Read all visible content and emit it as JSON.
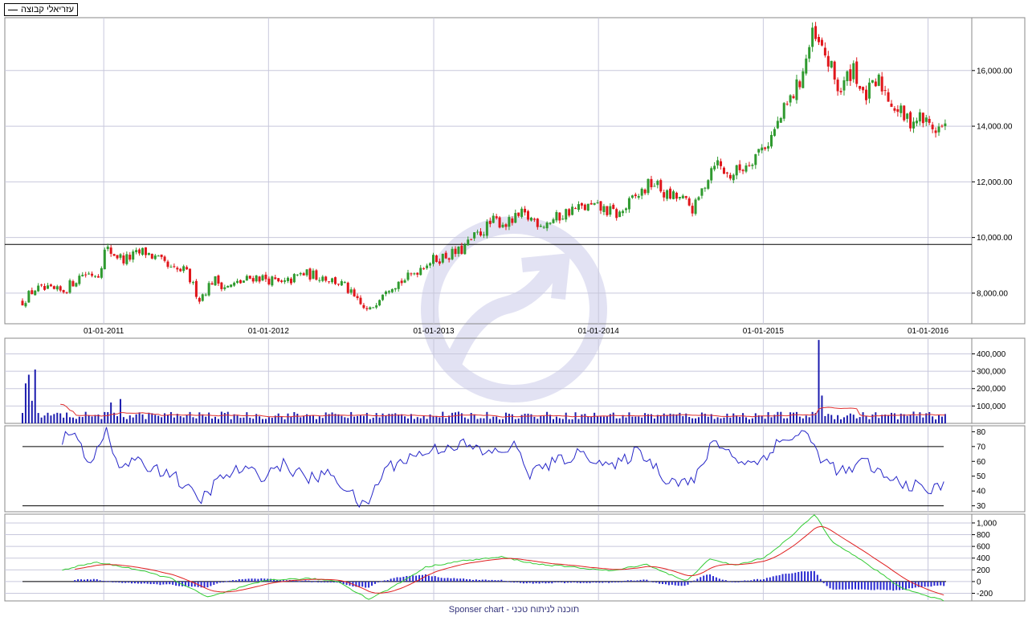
{
  "legend": {
    "label": "עזריאלי קבוצה"
  },
  "footer": {
    "text": "Sponser chart - תוכנה לניתוח טכני"
  },
  "colors": {
    "up": "#2f9a2f",
    "down": "#e0161b",
    "volume": "#1c1cae",
    "volume_ma": "#e03030",
    "rsi": "#2626c8",
    "macd": "#33cc33",
    "signal": "#e02020",
    "hist": "#2a2ad0"
  },
  "chart_data": [
    {
      "type": "candlestick",
      "title": "",
      "x_ticks": [
        "01-01-2011",
        "01-01-2012",
        "01-01-2013",
        "01-01-2014",
        "01-01-2015",
        "01-01-2016"
      ],
      "y_ticks": [
        "8,000.00",
        "10,000.00",
        "12,000.00",
        "14,000.00",
        "16,000.00"
      ],
      "y_tick_values": [
        8000,
        10000,
        12000,
        14000,
        16000
      ],
      "ylim": [
        6900,
        17900
      ],
      "reference_line": 9750,
      "date_range": [
        "2010-07-05",
        "2016-02-10"
      ],
      "close_anchors": [
        [
          "2010-07-05",
          7700
        ],
        [
          "2010-08-01",
          8150
        ],
        [
          "2010-10-01",
          8050
        ],
        [
          "2010-11-15",
          8700
        ],
        [
          "2010-12-20",
          8700
        ],
        [
          "2011-01-05",
          9600
        ],
        [
          "2011-02-15",
          9200
        ],
        [
          "2011-04-01",
          9500
        ],
        [
          "2011-05-01",
          9200
        ],
        [
          "2011-06-01",
          8800
        ],
        [
          "2011-07-01",
          8800
        ],
        [
          "2011-08-01",
          7800
        ],
        [
          "2011-09-01",
          8500
        ],
        [
          "2011-10-01",
          8200
        ],
        [
          "2011-11-01",
          8400
        ],
        [
          "2011-12-01",
          8600
        ],
        [
          "2012-01-01",
          8500
        ],
        [
          "2012-02-01",
          8300
        ],
        [
          "2012-03-15",
          8700
        ],
        [
          "2012-05-01",
          8600
        ],
        [
          "2012-06-15",
          8300
        ],
        [
          "2012-07-20",
          7600
        ],
        [
          "2012-08-10",
          7300
        ],
        [
          "2012-09-15",
          8200
        ],
        [
          "2012-11-01",
          8500
        ],
        [
          "2012-12-15",
          9100
        ],
        [
          "2013-01-20",
          9300
        ],
        [
          "2013-03-01",
          9500
        ],
        [
          "2013-04-01",
          10000
        ],
        [
          "2013-05-15",
          10600
        ],
        [
          "2013-06-15",
          10500
        ],
        [
          "2013-07-15",
          10800
        ],
        [
          "2013-09-01",
          10500
        ],
        [
          "2013-10-01",
          10700
        ],
        [
          "2013-11-01",
          11000
        ],
        [
          "2013-12-15",
          11100
        ],
        [
          "2014-01-15",
          11000
        ],
        [
          "2014-02-15",
          10800
        ],
        [
          "2014-03-15",
          11300
        ],
        [
          "2014-05-01",
          12000
        ],
        [
          "2014-06-01",
          11500
        ],
        [
          "2014-07-01",
          11400
        ],
        [
          "2014-08-01",
          11000
        ],
        [
          "2014-09-15",
          12800
        ],
        [
          "2014-10-15",
          12200
        ],
        [
          "2014-11-15",
          12500
        ],
        [
          "2014-12-15",
          13000
        ],
        [
          "2015-01-15",
          13500
        ],
        [
          "2015-02-15",
          14500
        ],
        [
          "2015-03-20",
          15500
        ],
        [
          "2015-04-20",
          17200
        ],
        [
          "2015-05-20",
          16500
        ],
        [
          "2015-06-20",
          15200
        ],
        [
          "2015-07-20",
          16200
        ],
        [
          "2015-08-10",
          15000
        ],
        [
          "2015-09-15",
          15600
        ],
        [
          "2015-10-15",
          14800
        ],
        [
          "2015-11-15",
          14200
        ],
        [
          "2015-12-15",
          14300
        ],
        [
          "2016-01-15",
          13900
        ],
        [
          "2016-02-10",
          14000
        ]
      ]
    },
    {
      "type": "bar",
      "title": "",
      "y_ticks": [
        "100,000",
        "200,000",
        "300,000",
        "400,000"
      ],
      "y_tick_values": [
        100000,
        200000,
        300000,
        400000
      ],
      "ylim": [
        0,
        490000
      ],
      "baseline_volume": 50000,
      "spikes": [
        [
          "2010-07-12",
          230000
        ],
        [
          "2010-07-20",
          280000
        ],
        [
          "2010-07-28",
          130000
        ],
        [
          "2010-08-05",
          310000
        ],
        [
          "2011-01-20",
          120000
        ],
        [
          "2011-02-10",
          140000
        ],
        [
          "2015-05-01",
          480000
        ],
        [
          "2015-05-10",
          160000
        ]
      ],
      "ma_start": 95000,
      "ma_mid": 45000,
      "ma_end": 58000
    },
    {
      "type": "line",
      "title": "",
      "y_ticks": [
        "30",
        "40",
        "50",
        "60",
        "70",
        "80"
      ],
      "y_tick_values": [
        30,
        40,
        50,
        60,
        70,
        80
      ],
      "ylim": [
        26,
        84
      ],
      "levels": [
        70,
        30
      ],
      "anchors": [
        [
          "2010-10-01",
          75
        ],
        [
          "2010-11-01",
          78
        ],
        [
          "2010-12-01",
          58
        ],
        [
          "2011-01-05",
          83
        ],
        [
          "2011-02-01",
          55
        ],
        [
          "2011-03-01",
          60
        ],
        [
          "2011-06-01",
          52
        ],
        [
          "2011-08-01",
          33
        ],
        [
          "2011-09-15",
          48
        ],
        [
          "2011-11-01",
          55
        ],
        [
          "2011-12-15",
          50
        ],
        [
          "2012-02-01",
          58
        ],
        [
          "2012-04-01",
          48
        ],
        [
          "2012-05-20",
          52
        ],
        [
          "2012-08-01",
          28
        ],
        [
          "2012-09-15",
          55
        ],
        [
          "2012-11-01",
          62
        ],
        [
          "2013-01-01",
          68
        ],
        [
          "2013-03-01",
          72
        ],
        [
          "2013-05-01",
          65
        ],
        [
          "2013-07-01",
          70
        ],
        [
          "2013-08-01",
          52
        ],
        [
          "2013-10-01",
          60
        ],
        [
          "2013-12-01",
          66
        ],
        [
          "2014-02-01",
          55
        ],
        [
          "2014-04-01",
          68
        ],
        [
          "2014-06-01",
          48
        ],
        [
          "2014-08-01",
          46
        ],
        [
          "2014-09-15",
          75
        ],
        [
          "2014-11-01",
          62
        ],
        [
          "2014-12-15",
          58
        ],
        [
          "2015-02-01",
          72
        ],
        [
          "2015-04-01",
          80
        ],
        [
          "2015-05-15",
          60
        ],
        [
          "2015-07-01",
          52
        ],
        [
          "2015-08-15",
          60
        ],
        [
          "2015-10-01",
          48
        ],
        [
          "2015-11-15",
          45
        ],
        [
          "2016-01-01",
          40
        ],
        [
          "2016-02-10",
          44
        ]
      ]
    },
    {
      "type": "line",
      "title": "",
      "y_ticks": [
        "-200",
        "0",
        "200",
        "400",
        "600",
        "800",
        "1,000"
      ],
      "y_tick_values": [
        -200,
        0,
        200,
        400,
        600,
        800,
        1000
      ],
      "ylim": [
        -330,
        1150
      ],
      "zero_line": 0,
      "macd_anchors": [
        [
          "2010-10-01",
          200
        ],
        [
          "2010-12-15",
          330
        ],
        [
          "2011-03-01",
          230
        ],
        [
          "2011-06-01",
          50
        ],
        [
          "2011-08-20",
          -270
        ],
        [
          "2011-11-01",
          -100
        ],
        [
          "2012-01-01",
          30
        ],
        [
          "2012-04-01",
          50
        ],
        [
          "2012-06-01",
          10
        ],
        [
          "2012-08-10",
          -300
        ],
        [
          "2012-10-01",
          -100
        ],
        [
          "2012-12-15",
          250
        ],
        [
          "2013-03-01",
          350
        ],
        [
          "2013-06-01",
          420
        ],
        [
          "2013-08-15",
          300
        ],
        [
          "2013-11-01",
          250
        ],
        [
          "2014-02-01",
          180
        ],
        [
          "2014-04-15",
          300
        ],
        [
          "2014-07-15",
          0
        ],
        [
          "2014-09-01",
          380
        ],
        [
          "2014-11-01",
          280
        ],
        [
          "2015-01-01",
          400
        ],
        [
          "2015-03-01",
          750
        ],
        [
          "2015-04-25",
          1150
        ],
        [
          "2015-06-01",
          700
        ],
        [
          "2015-07-20",
          450
        ],
        [
          "2015-09-01",
          230
        ],
        [
          "2015-11-01",
          -100
        ],
        [
          "2016-01-01",
          -250
        ],
        [
          "2016-02-10",
          -330
        ]
      ]
    }
  ]
}
